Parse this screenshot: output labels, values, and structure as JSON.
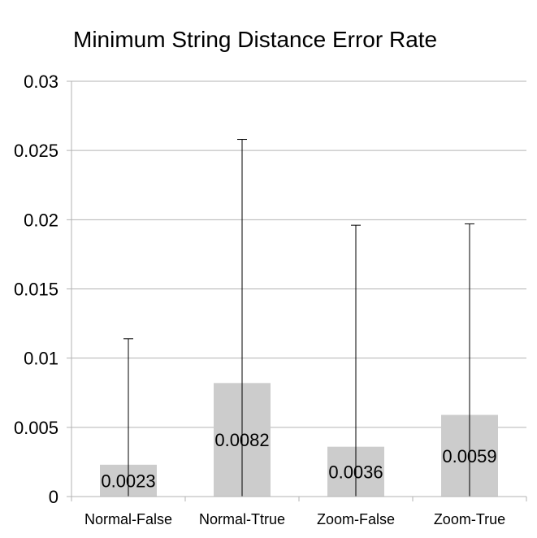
{
  "chart_data": {
    "type": "bar",
    "title": "Minimum String Distance Error Rate",
    "xlabel": "",
    "ylabel": "",
    "categories": [
      "Normal-False",
      "Normal-Ttrue",
      "Zoom-False",
      "Zoom-True"
    ],
    "values": [
      0.0023,
      0.0082,
      0.0036,
      0.0059
    ],
    "data_labels": [
      "0.0023",
      "0.0082",
      "0.0036",
      "0.0059"
    ],
    "error_bar_upper": [
      0.0114,
      0.0258,
      0.0196,
      0.0197
    ],
    "ylim": [
      0,
      0.03
    ],
    "yticks": [
      0,
      0.005,
      0.01,
      0.015,
      0.02,
      0.025,
      0.03
    ],
    "ytick_labels": [
      "0",
      "0.005",
      "0.01",
      "0.015",
      "0.02",
      "0.025",
      "0.03"
    ],
    "grid": true,
    "legend": "none",
    "colors": {
      "bar": "#cccccc",
      "grid": "#b3b3b3",
      "errorbar": "#000000"
    }
  }
}
